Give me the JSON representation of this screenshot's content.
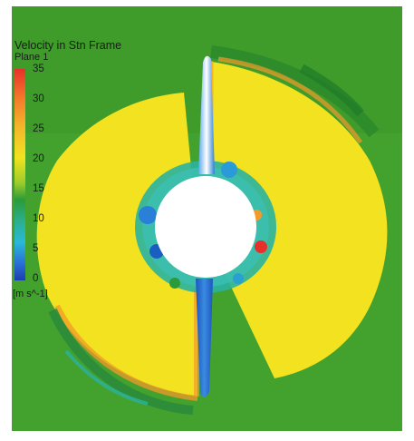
{
  "legend": {
    "title": "Velocity in Stn Frame",
    "subtitle": "Plane 1",
    "ticks": [
      "35",
      "30",
      "25",
      "20",
      "15",
      "10",
      "5",
      "0"
    ],
    "unit": "[m s^-1]"
  },
  "colors": {
    "background": "#3f9a2c",
    "wake": "#f2df1f",
    "hub": "#ffffff",
    "blade": "#2a6fd6"
  }
}
